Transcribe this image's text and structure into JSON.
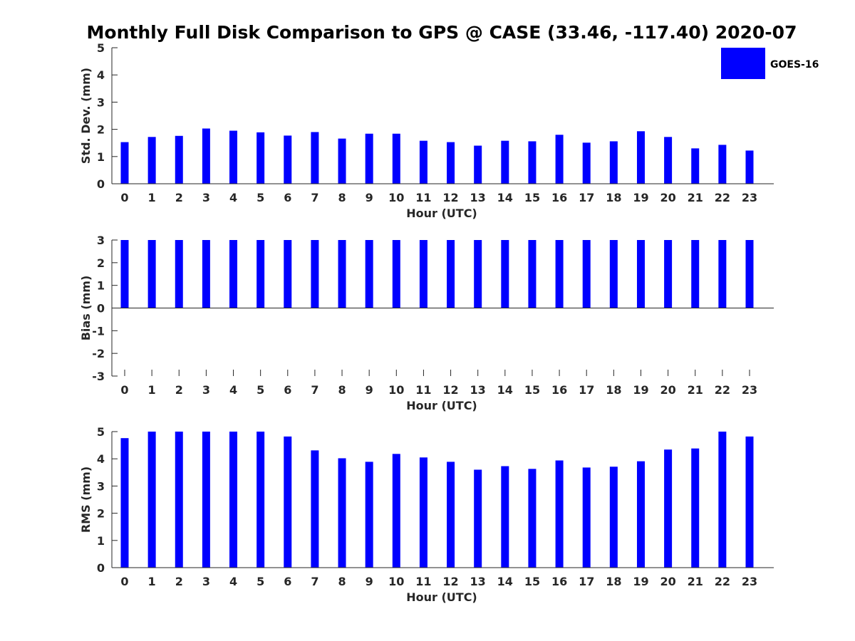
{
  "chart_data": {
    "title": "Monthly Full Disk Comparison to GPS @ CASE (33.46, -117.40) 2020-07",
    "legend": {
      "label": "GOES-16",
      "color": "#0000ff",
      "placement": "top-right"
    },
    "categories": [
      "0",
      "1",
      "2",
      "3",
      "4",
      "5",
      "6",
      "7",
      "8",
      "9",
      "10",
      "11",
      "12",
      "13",
      "14",
      "15",
      "16",
      "17",
      "18",
      "19",
      "20",
      "21",
      "22",
      "23"
    ],
    "panels": [
      {
        "type": "bar",
        "xlabel": "Hour (UTC)",
        "ylabel": "Std. Dev. (mm)",
        "ylim": [
          0,
          5
        ],
        "yticks": [
          "0",
          "1",
          "2",
          "3",
          "4",
          "5"
        ],
        "series": [
          {
            "name": "GOES-16",
            "values": [
              1.53,
              1.72,
              1.76,
              2.03,
              1.95,
              1.89,
              1.77,
              1.9,
              1.66,
              1.84,
              1.84,
              1.58,
              1.53,
              1.4,
              1.58,
              1.56,
              1.8,
              1.51,
              1.56,
              1.93,
              1.72,
              1.3,
              1.43,
              1.22
            ]
          }
        ]
      },
      {
        "type": "bar",
        "xlabel": "Hour (UTC)",
        "ylabel": "Bias (mm)",
        "ylim": [
          -3,
          3
        ],
        "yticks": [
          "-3",
          "-2",
          "-1",
          "0",
          "1",
          "2",
          "3"
        ],
        "series": [
          {
            "name": "GOES-16",
            "values": [
              3,
              3,
              3,
              3,
              3,
              3,
              3,
              3,
              3,
              3,
              3,
              3,
              3,
              3,
              3,
              3,
              3,
              3,
              3,
              3,
              3,
              3,
              3,
              3
            ]
          }
        ]
      },
      {
        "type": "bar",
        "xlabel": "Hour (UTC)",
        "ylabel": "RMS (mm)",
        "ylim": [
          0,
          5
        ],
        "yticks": [
          "0",
          "1",
          "2",
          "3",
          "4",
          "5"
        ],
        "series": [
          {
            "name": "GOES-16",
            "values": [
              4.76,
              5,
              5,
              5,
              5,
              5,
              4.82,
              4.31,
              4.02,
              3.89,
              4.18,
              4.05,
              3.89,
              3.6,
              3.73,
              3.63,
              3.94,
              3.68,
              3.71,
              3.91,
              4.34,
              4.38,
              5,
              4.82
            ]
          }
        ]
      }
    ]
  }
}
